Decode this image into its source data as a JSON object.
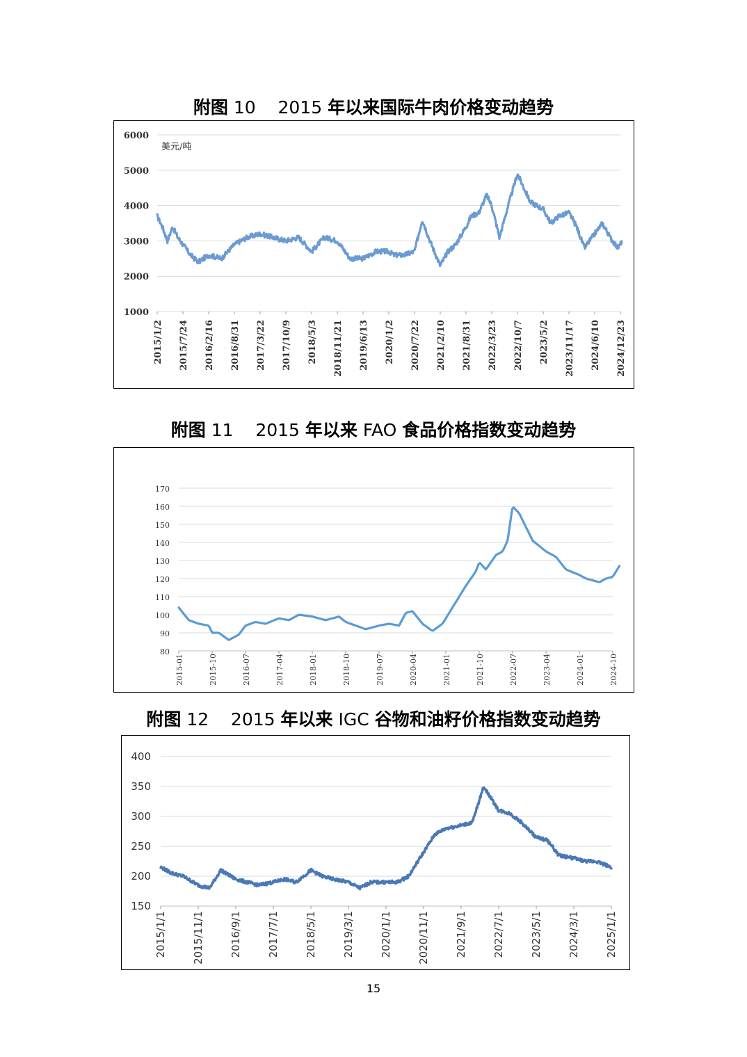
{
  "figures": [
    {
      "title_prefix": "附图",
      "title_num": "10",
      "title_year": "2015",
      "title_rest": "年以来国际牛肉价格变动趋势",
      "line_color": "#6b9bd1"
    },
    {
      "title_prefix": "附图",
      "title_num": "11",
      "title_year": "2015",
      "title_mid": "年以来",
      "title_latin": "FAO",
      "title_rest": "食品价格指数变动趋势",
      "line_color": "#5b9bd5"
    },
    {
      "title_prefix": "附图",
      "title_num": "12",
      "title_year": "2015",
      "title_mid": "年以来",
      "title_latin": "IGC",
      "title_rest": "谷物和油籽价格指数变动趋势",
      "line_color": "#4a78b5"
    }
  ],
  "page_number": "15",
  "chart_data": [
    {
      "type": "line",
      "unit_label": "美元/吨",
      "ylim": [
        1000,
        6000
      ],
      "yticks": [
        "1000",
        "2000",
        "3000",
        "4000",
        "5000",
        "6000"
      ],
      "xticks": [
        "2015/1/2",
        "2015/7/24",
        "2016/2/16",
        "2016/8/31",
        "2017/3/22",
        "2017/10/9",
        "2018/5/3",
        "2018/11/21",
        "2019/6/13",
        "2020/1/2",
        "2020/7/22",
        "2021/2/10",
        "2021/8/31",
        "2022/3/23",
        "2022/10/7",
        "2023/5/2",
        "2023/11/17",
        "2024/6/10",
        "2024/12/23"
      ],
      "grid": true,
      "series": [
        {
          "x": [
            0,
            0.2,
            0.4,
            0.6,
            0.8,
            1,
            1.3,
            1.6,
            2,
            2.5,
            3,
            3.5,
            4,
            4.5,
            5,
            5.5,
            6,
            6.5,
            7,
            7.5,
            8,
            8.5,
            9,
            9.2,
            9.6,
            10,
            10.3,
            10.6,
            11,
            11.3,
            11.6,
            12,
            12.2,
            12.5,
            12.8,
            13,
            13.3,
            13.6,
            14,
            14.5,
            15,
            15.3,
            15.6,
            16,
            16.3,
            16.6,
            17,
            17.3,
            17.6,
            17.9,
            18,
            18.05
          ],
          "y": [
            3700,
            3400,
            3000,
            3400,
            3100,
            2900,
            2600,
            2400,
            2600,
            2500,
            2900,
            3100,
            3200,
            3100,
            3000,
            3100,
            2700,
            3100,
            3000,
            2500,
            2500,
            2700,
            2700,
            2600,
            2600,
            2700,
            3600,
            3000,
            2300,
            2700,
            2900,
            3400,
            3700,
            3800,
            4300,
            4000,
            3100,
            3900,
            4900,
            4100,
            3900,
            3500,
            3700,
            3800,
            3400,
            2800,
            3200,
            3500,
            3100,
            2800,
            2900,
            3000
          ]
        }
      ]
    },
    {
      "type": "line",
      "ylim": [
        80,
        170
      ],
      "yticks": [
        "80",
        "90",
        "100",
        "110",
        "120",
        "130",
        "140",
        "150",
        "160",
        "170"
      ],
      "xticks": [
        "2015-01",
        "2015-10",
        "2016-07",
        "2017-04",
        "2018-01",
        "2018-10",
        "2019-07",
        "2020-04",
        "2021-01",
        "2021-10",
        "2022-07",
        "2023-04",
        "2024-01",
        "2024-10"
      ],
      "grid": true,
      "series": [
        {
          "x": [
            0,
            0.3,
            0.6,
            0.9,
            1,
            1.2,
            1.5,
            1.8,
            2,
            2.3,
            2.6,
            3,
            3.3,
            3.6,
            4,
            4.4,
            4.8,
            5,
            5.3,
            5.6,
            6,
            6.3,
            6.6,
            6.8,
            7,
            7.3,
            7.6,
            7.9,
            8,
            8.3,
            8.6,
            8.9,
            9,
            9.2,
            9.5,
            9.7,
            9.85,
            10,
            10.2,
            10.6,
            11,
            11.3,
            11.6,
            12,
            12.2,
            12.6,
            12.8,
            13,
            13.2
          ],
          "y": [
            104,
            97,
            95,
            94,
            90,
            90,
            86,
            89,
            94,
            96,
            95,
            98,
            97,
            100,
            99,
            97,
            99,
            96,
            94,
            92,
            94,
            95,
            94,
            101,
            102,
            95,
            91,
            95,
            98,
            107,
            116,
            124,
            129,
            125,
            133,
            135,
            141,
            160,
            156,
            141,
            135,
            132,
            125,
            122,
            120,
            118,
            120,
            121,
            127
          ]
        }
      ]
    },
    {
      "type": "line",
      "ylim": [
        150,
        400
      ],
      "yticks": [
        "150",
        "200",
        "250",
        "300",
        "350",
        "400"
      ],
      "xticks": [
        "2015/1/1",
        "2015/11/1",
        "2016/9/1",
        "2017/7/1",
        "2018/5/1",
        "2019/3/1",
        "2020/1/1",
        "2020/11/1",
        "2021/9/1",
        "2022/7/1",
        "2023/5/1",
        "2024/3/1",
        "2025/1/1"
      ],
      "grid": true,
      "series": [
        {
          "x": [
            0,
            0.3,
            0.6,
            1,
            1.3,
            1.6,
            2,
            2.3,
            2.6,
            3,
            3.3,
            3.6,
            4,
            4.3,
            4.6,
            5,
            5.3,
            5.6,
            6,
            6.3,
            6.6,
            7,
            7.3,
            7.6,
            8,
            8.3,
            8.6,
            9,
            9.3,
            9.6,
            10,
            10.3,
            10.6,
            11,
            11.3,
            11.6,
            12
          ],
          "y": [
            215,
            205,
            200,
            185,
            180,
            210,
            195,
            190,
            185,
            190,
            195,
            190,
            210,
            200,
            195,
            190,
            180,
            190,
            190,
            190,
            200,
            240,
            270,
            280,
            285,
            290,
            350,
            310,
            305,
            290,
            265,
            260,
            235,
            230,
            225,
            225,
            215
          ]
        }
      ]
    }
  ]
}
